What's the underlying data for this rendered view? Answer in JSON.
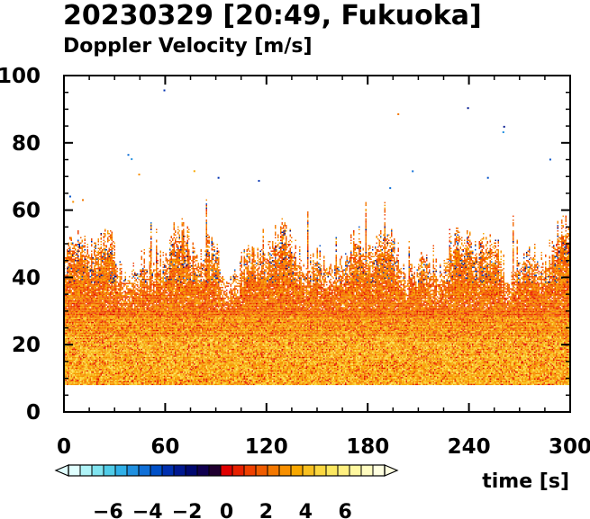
{
  "chart_data": {
    "type": "heatmap",
    "title": "20230329 [20:49, Fukuoka]",
    "subtitle": "Doppler Velocity [m/s]",
    "xlabel": "time [s]",
    "ylabel": "",
    "xlim": [
      0,
      300
    ],
    "ylim": [
      0,
      100
    ],
    "x_ticks": [
      0,
      60,
      120,
      180,
      240,
      300
    ],
    "y_ticks": [
      0,
      20,
      40,
      60,
      80,
      100
    ],
    "x_tick_labels": [
      "0",
      "60",
      "120",
      "180",
      "240",
      "300"
    ],
    "y_tick_labels": [
      "0",
      "20",
      "40",
      "60",
      "80",
      "100"
    ],
    "grid": false,
    "data_bottom": 8,
    "echo_top_typical": 47,
    "echo_top_max": 63,
    "dominant_velocity_range": [
      0,
      4
    ],
    "colorbar": {
      "range": [
        -8,
        8
      ],
      "tick_values": [
        -6,
        -4,
        -2,
        0,
        2,
        4,
        6
      ],
      "tick_labels": [
        "−6",
        "−4",
        "−2",
        "0",
        "2",
        "4",
        "6"
      ],
      "colors": [
        "#e0ffff",
        "#b0f4f8",
        "#80e4f0",
        "#50cce8",
        "#30b0e8",
        "#2090e0",
        "#1070d8",
        "#0050c8",
        "#0030b0",
        "#001890",
        "#000870",
        "#100050",
        "#200030",
        "#e00000",
        "#e82000",
        "#f04000",
        "#f05c00",
        "#f47800",
        "#f89000",
        "#f8a800",
        "#f8c020",
        "#fcd840",
        "#fce860",
        "#fff080",
        "#fff8a0",
        "#fffcc0",
        "#ffffe0"
      ]
    }
  }
}
